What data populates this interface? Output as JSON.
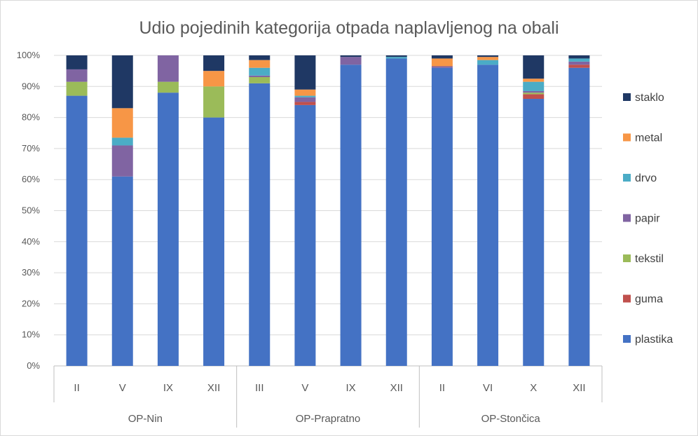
{
  "chart_data": {
    "type": "bar",
    "stacked": true,
    "title": "Udio pojedinih kategorija otpada naplavljenog na obali",
    "xlabel": "",
    "ylabel": "",
    "ylim": [
      0,
      100
    ],
    "y_ticks": [
      "0%",
      "10%",
      "20%",
      "30%",
      "40%",
      "50%",
      "60%",
      "70%",
      "80%",
      "90%",
      "100%"
    ],
    "grid": true,
    "legend_position": "right",
    "groups": [
      {
        "name": "OP-Nin",
        "categories": [
          "II",
          "V",
          "IX",
          "XII"
        ]
      },
      {
        "name": "OP-Prapratno",
        "categories": [
          "III",
          "V",
          "IX",
          "XII"
        ]
      },
      {
        "name": "OP-Stončica",
        "categories": [
          "II",
          "VI",
          "X",
          "XII"
        ]
      }
    ],
    "categories": [
      "II",
      "V",
      "IX",
      "XII",
      "III",
      "V",
      "IX",
      "XII",
      "II",
      "VI",
      "X",
      "XII"
    ],
    "series": [
      {
        "name": "plastika",
        "color": "#4472c4",
        "values": [
          87,
          61,
          88,
          80,
          91,
          84,
          97,
          99,
          96,
          97,
          86,
          96
        ]
      },
      {
        "name": "guma",
        "color": "#c0504d",
        "values": [
          0,
          0,
          0,
          0,
          0,
          1,
          0,
          0,
          0,
          0,
          1.5,
          1
        ]
      },
      {
        "name": "tekstil",
        "color": "#9bbb59",
        "values": [
          4.5,
          0,
          3.5,
          10,
          2,
          0,
          0,
          0,
          0,
          0,
          0.5,
          0
        ]
      },
      {
        "name": "papir",
        "color": "#8064a2",
        "values": [
          4,
          10,
          8.5,
          0,
          0.5,
          1.5,
          2.5,
          0,
          0.5,
          0,
          0.5,
          1
        ]
      },
      {
        "name": "drvo",
        "color": "#4bacc6",
        "values": [
          0,
          2.5,
          0,
          0,
          2.5,
          0.5,
          0,
          0.5,
          0,
          1.5,
          3,
          1
        ]
      },
      {
        "name": "metal",
        "color": "#f79646",
        "values": [
          0,
          9.5,
          0,
          5,
          2.5,
          2,
          0,
          0,
          2.5,
          1,
          1,
          0
        ]
      },
      {
        "name": "staklo",
        "color": "#1f3864",
        "values": [
          4.5,
          17,
          0,
          5,
          1.5,
          11,
          0.5,
          0.5,
          1,
          0.5,
          7.5,
          1
        ]
      }
    ],
    "legend_order": [
      "staklo",
      "metal",
      "drvo",
      "papir",
      "tekstil",
      "guma",
      "plastika"
    ]
  }
}
